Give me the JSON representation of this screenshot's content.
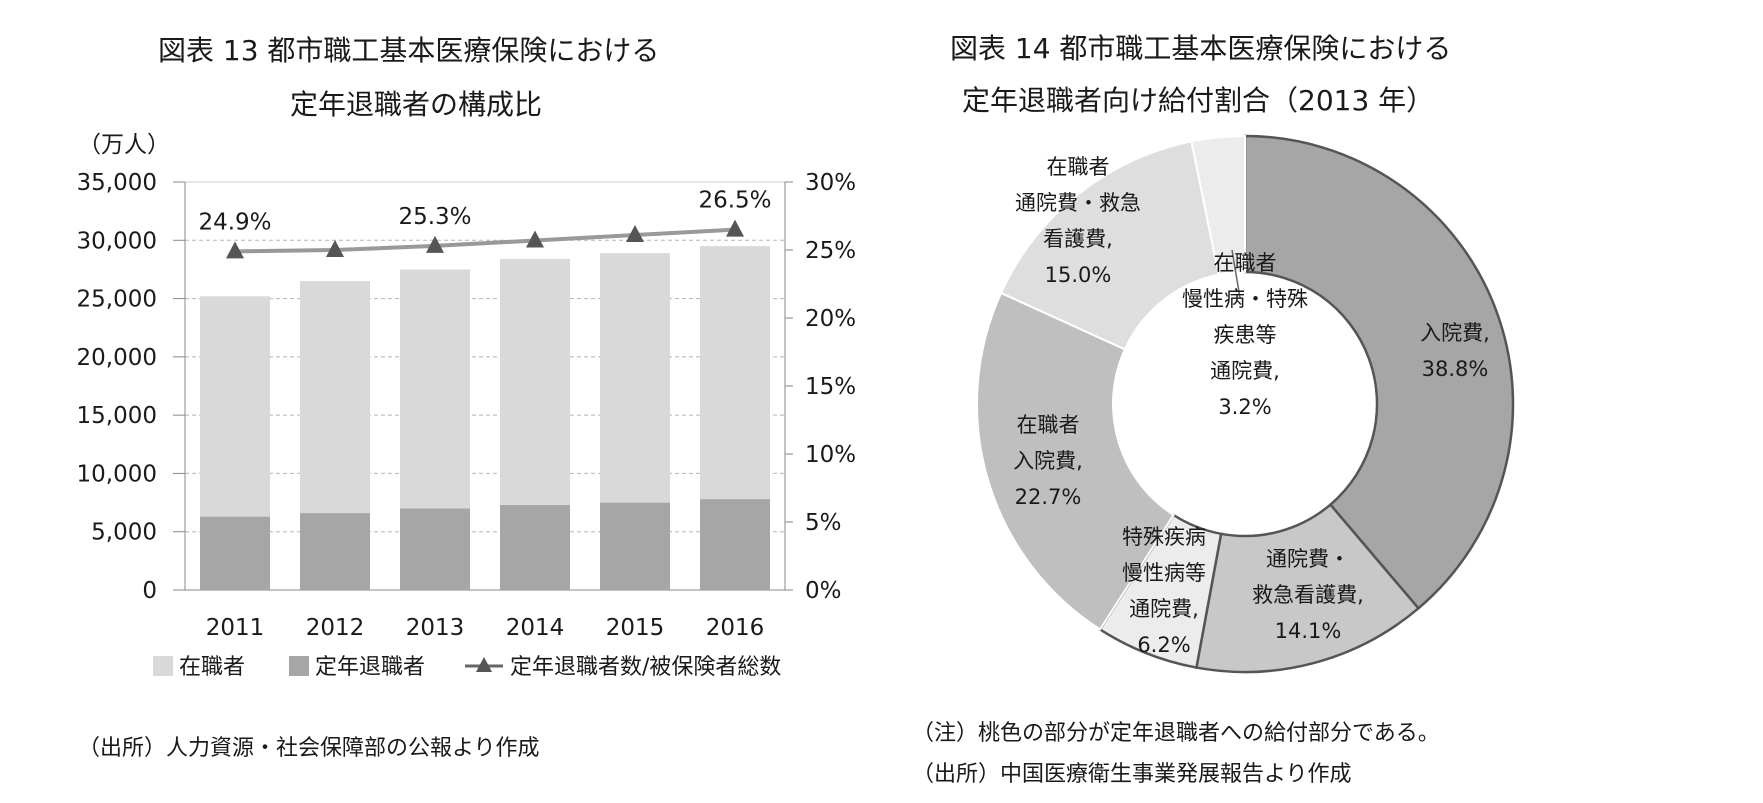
{
  "left": {
    "title_line1": "図表 13   都市職工基本医療保険における",
    "title_line2": "定年退職者の構成比",
    "unit": "（万人）",
    "source": "（出所）人力資源・社会保障部の公報より作成"
  },
  "right": {
    "title_line1": "図表 14   都市職工基本医療保険における",
    "title_line2": "定年退職者向け給付割合（2013 年）",
    "note": "（注）桃色の部分が定年退職者への給付部分である。",
    "source": "（出所）中国医療衛生事業発展報告より作成"
  },
  "chart_data": [
    {
      "type": "bar",
      "stacked": true,
      "categories": [
        "2011",
        "2012",
        "2013",
        "2014",
        "2015",
        "2016"
      ],
      "series": [
        {
          "name": "在職者",
          "values": [
            18900,
            19900,
            20500,
            21100,
            21400,
            21700
          ],
          "color": "#d9d9d9"
        },
        {
          "name": "定年退職者",
          "values": [
            6300,
            6600,
            7000,
            7300,
            7500,
            7800
          ],
          "color": "#a6a6a6"
        }
      ],
      "line_series": {
        "name": "定年退職者数/被保険者総数",
        "values": [
          24.9,
          25.0,
          25.3,
          25.7,
          26.1,
          26.5
        ],
        "color": "#999999",
        "axis": "right"
      },
      "ylim": [
        0,
        35000
      ],
      "yticks": [
        "35,000",
        "30,000",
        "25,000",
        "20,000",
        "15,000",
        "10,000",
        "5,000",
        "0"
      ],
      "y2lim": [
        0,
        30
      ],
      "y2ticks": [
        "30%",
        "25%",
        "20%",
        "15%",
        "10%",
        "5%",
        "0%"
      ],
      "data_labels": [
        "24.9%",
        "",
        "25.3%",
        "",
        "",
        "26.5%"
      ],
      "legend_position": "bottom",
      "grid": true
    },
    {
      "type": "pie",
      "donut": true,
      "slices": [
        {
          "label_lines": [
            "入院費,",
            "38.8%"
          ],
          "value": 38.8,
          "color": "#a6a6a6",
          "retiree": true
        },
        {
          "label_lines": [
            "通院費・",
            "救急看護費,",
            "14.1%"
          ],
          "value": 14.1,
          "color": "#c8c8c8",
          "retiree": true
        },
        {
          "label_lines": [
            "特殊疾病",
            "慢性病等",
            "通院費,",
            "6.2%"
          ],
          "value": 6.2,
          "color": "#ececec",
          "retiree": true
        },
        {
          "label_lines": [
            "在職者",
            "入院費,",
            "22.7%"
          ],
          "value": 22.7,
          "color": "#bfbfbf",
          "retiree": false
        },
        {
          "label_lines": [
            "在職者",
            "通院費・救急",
            "看護費,",
            "15.0%"
          ],
          "value": 15.0,
          "color": "#dedede",
          "retiree": false
        },
        {
          "label_lines": [
            "在職者",
            "慢性病・特殊",
            "疾患等",
            "通院費,",
            "3.2%"
          ],
          "value": 3.2,
          "color": "#ececec",
          "retiree": false
        }
      ]
    }
  ]
}
